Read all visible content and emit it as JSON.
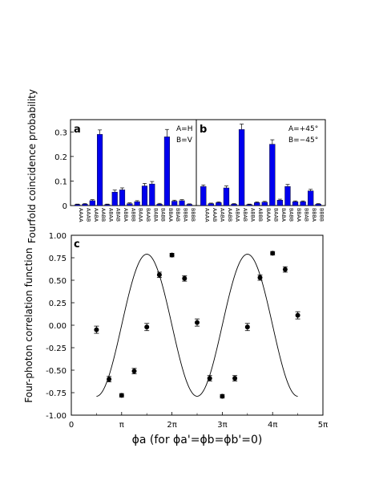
{
  "chart_data": [
    {
      "panel": "a",
      "type": "bar",
      "ylabel": "Fourfold coincidence probability",
      "ylim": [
        0,
        0.35
      ],
      "yticks": [
        "0",
        "0.1",
        "0.2",
        "0.3"
      ],
      "legend": [
        "A=H",
        "B=V"
      ],
      "legend_placement": "top-right",
      "categories": [
        "AAAA",
        "AAAB",
        "AABA",
        "AABB",
        "ABAA",
        "ABAB",
        "ABBA",
        "ABBB",
        "BAAA",
        "BAAB",
        "BABA",
        "BABB",
        "BBAA",
        "BBAB",
        "BBBA",
        "BBBB"
      ],
      "values": [
        0.004,
        0.006,
        0.02,
        0.29,
        0.004,
        0.055,
        0.064,
        0.008,
        0.016,
        0.08,
        0.088,
        0.006,
        0.28,
        0.018,
        0.02,
        0.005
      ],
      "errors": [
        0.002,
        0.002,
        0.004,
        0.018,
        0.002,
        0.008,
        0.008,
        0.003,
        0.004,
        0.01,
        0.01,
        0.003,
        0.03,
        0.004,
        0.004,
        0.002
      ],
      "color": "#0000ee"
    },
    {
      "panel": "b",
      "type": "bar",
      "ylim": [
        0,
        0.35
      ],
      "legend": [
        "A=+45°",
        "B=−45°"
      ],
      "legend_placement": "top-right",
      "categories": [
        "AAAA",
        "AAAB",
        "AABA",
        "AABB",
        "ABAA",
        "ABAB",
        "ABBA",
        "ABBB",
        "BAAA",
        "BAAB",
        "BABA",
        "BABB",
        "BBAA",
        "BBAB",
        "BBBA",
        "BBBB"
      ],
      "values": [
        0.078,
        0.008,
        0.012,
        0.072,
        0.006,
        0.31,
        0.004,
        0.012,
        0.014,
        0.25,
        0.022,
        0.078,
        0.016,
        0.016,
        0.06,
        0.006
      ],
      "errors": [
        0.006,
        0.002,
        0.003,
        0.008,
        0.002,
        0.022,
        0.002,
        0.003,
        0.003,
        0.018,
        0.004,
        0.008,
        0.003,
        0.003,
        0.006,
        0.002
      ],
      "color": "#0000ee"
    },
    {
      "panel": "c",
      "type": "scatter",
      "ylabel": "Four-photon correlation function",
      "xlabel": "ϕa  (for ϕa'=ϕb=ϕb'=0)",
      "xlim_pi": [
        0,
        5
      ],
      "ylim": [
        -1.0,
        1.0
      ],
      "xticks": [
        "0",
        "π",
        "2π",
        "3π",
        "4π",
        "5π"
      ],
      "yticks": [
        "1.00",
        "0.75",
        "0.50",
        "0.25",
        "0.00",
        "-0.25",
        "-0.50",
        "-0.75",
        "-1.00"
      ],
      "x_pi": [
        0.5,
        0.75,
        1.0,
        1.25,
        1.5,
        1.75,
        2.0,
        2.25,
        2.5,
        2.75,
        3.0,
        3.25,
        3.5,
        3.75,
        4.0,
        4.25,
        4.5
      ],
      "y": [
        -0.05,
        -0.6,
        -0.78,
        -0.51,
        -0.02,
        0.56,
        0.78,
        0.52,
        0.03,
        -0.59,
        -0.79,
        -0.59,
        -0.02,
        0.53,
        0.8,
        0.62,
        0.11
      ],
      "errors": [
        0.04,
        0.03,
        0.02,
        0.03,
        0.04,
        0.03,
        0.02,
        0.03,
        0.04,
        0.03,
        0.02,
        0.03,
        0.04,
        0.03,
        0.02,
        0.03,
        0.04
      ],
      "fit": "sinusoid"
    }
  ]
}
